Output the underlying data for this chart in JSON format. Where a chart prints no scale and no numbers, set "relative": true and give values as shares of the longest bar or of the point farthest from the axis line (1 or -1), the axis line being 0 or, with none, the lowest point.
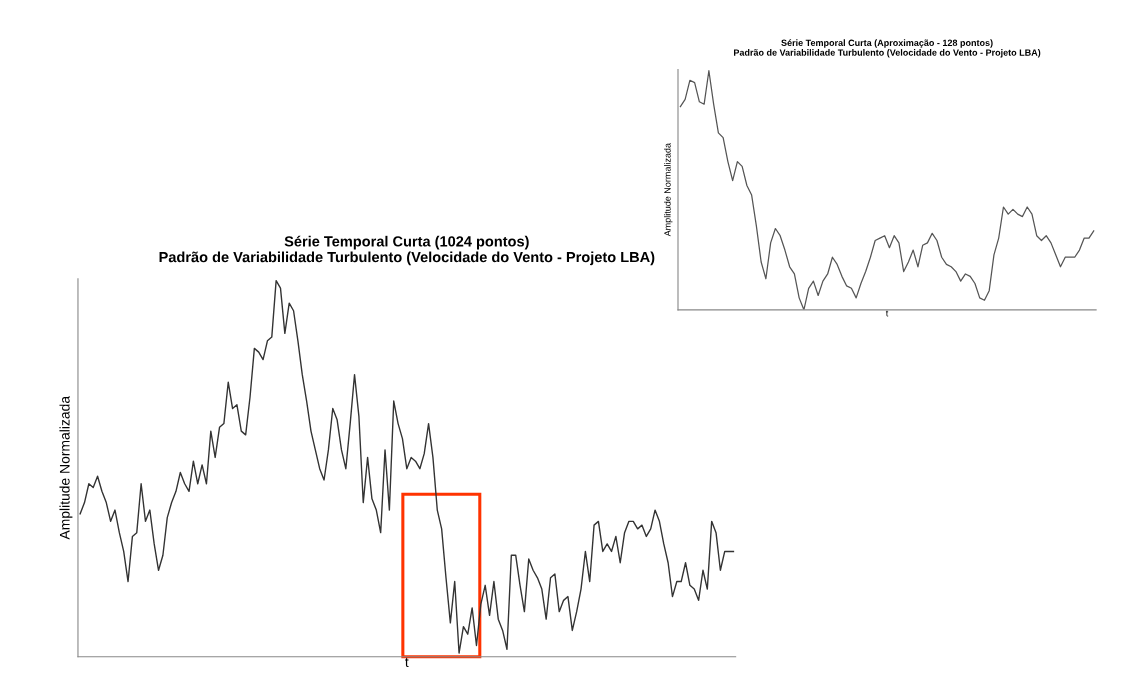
{
  "chart_data": [
    {
      "type": "line",
      "title": "Série Temporal Curta (1024 pontos)\nPadrão de Variabilidade Turbulento (Velocidade do Vento - Projeto LBA)",
      "xlabel": "t",
      "ylabel": "Amplitude Normalizada",
      "relative": true,
      "tick_labels": false,
      "grid": false,
      "categories": [
        null,
        null,
        null,
        null,
        null,
        null,
        null,
        null,
        null,
        null,
        null,
        null,
        null,
        null,
        null,
        null,
        null,
        null,
        null,
        null,
        null,
        null,
        null,
        null,
        null,
        null,
        null,
        null,
        null,
        null,
        null,
        null,
        null,
        null,
        null,
        null,
        null,
        null,
        null,
        null,
        null,
        null,
        null,
        null,
        null,
        null,
        null,
        null,
        null,
        null,
        null,
        null,
        null,
        null,
        null,
        null,
        null,
        null,
        null,
        null,
        null,
        null,
        null,
        null,
        null,
        null,
        null,
        null,
        null,
        null,
        null,
        null,
        null,
        null,
        null,
        null,
        null,
        null,
        null,
        null,
        null,
        null,
        null,
        null,
        null,
        null,
        null,
        null,
        null,
        null,
        null,
        null,
        null,
        null,
        null,
        null,
        null,
        null,
        null,
        null,
        null,
        null,
        null,
        null,
        null,
        null,
        null,
        null,
        null,
        null,
        null,
        null,
        null,
        null,
        null,
        null,
        null,
        null,
        null,
        null,
        null,
        null,
        null,
        null,
        null,
        null,
        null,
        null,
        null,
        null,
        null,
        null,
        null,
        null,
        null,
        null,
        null,
        null,
        null,
        null,
        null,
        null,
        null,
        null,
        null,
        null,
        null,
        null,
        null,
        null,
        null
      ],
      "series": [
        {
          "color": "#333333",
          "values": [
            0.38,
            0.41,
            0.46,
            0.45,
            0.48,
            0.44,
            0.41,
            0.36,
            0.39,
            0.33,
            0.28,
            0.2,
            0.32,
            0.33,
            0.46,
            0.36,
            0.39,
            0.3,
            0.23,
            0.27,
            0.37,
            0.41,
            0.44,
            0.49,
            0.46,
            0.44,
            0.52,
            0.46,
            0.51,
            0.46,
            0.6,
            0.53,
            0.61,
            0.62,
            0.73,
            0.66,
            0.67,
            0.6,
            0.59,
            0.69,
            0.82,
            0.81,
            0.79,
            0.84,
            0.85,
            1.0,
            0.98,
            0.86,
            0.94,
            0.92,
            0.84,
            0.75,
            0.68,
            0.6,
            0.55,
            0.5,
            0.47,
            0.55,
            0.66,
            0.63,
            0.55,
            0.5,
            0.62,
            0.75,
            0.64,
            0.41,
            0.53,
            0.42,
            0.39,
            0.33,
            0.55,
            0.39,
            0.68,
            0.62,
            0.58,
            0.5,
            0.53,
            0.52,
            0.5,
            0.54,
            0.62,
            0.53,
            0.39,
            0.34,
            0.21,
            0.09,
            0.2,
            0.01,
            0.08,
            0.06,
            0.13,
            0.03,
            0.14,
            0.19,
            0.11,
            0.2,
            0.1,
            0.07,
            0.02,
            0.27,
            0.27,
            0.19,
            0.12,
            0.26,
            0.23,
            0.21,
            0.18,
            0.1,
            0.21,
            0.22,
            0.12,
            0.15,
            0.16,
            0.07,
            0.12,
            0.18,
            0.28,
            0.2,
            0.35,
            0.36,
            0.28,
            0.3,
            0.28,
            0.32,
            0.25,
            0.33,
            0.36,
            0.36,
            0.34,
            0.35,
            0.32,
            0.34,
            0.39,
            0.36,
            0.3,
            0.25,
            0.16,
            0.2,
            0.2,
            0.25,
            0.19,
            0.18,
            0.15,
            0.23,
            0.18,
            0.36,
            0.33,
            0.23,
            0.28,
            0.28,
            0.28
          ]
        }
      ]
    },
    {
      "type": "line",
      "title": "Série Temporal Curta (Aproximação - 128 pontos)\nPadrão de Variabilidade Turbulento (Velocidade do Vento - Projeto LBA)",
      "xlabel": "t",
      "ylabel": "Amplitude Normalizada",
      "relative": true,
      "tick_labels": false,
      "grid": false,
      "categories": [
        null,
        null,
        null,
        null,
        null,
        null,
        null,
        null,
        null,
        null,
        null,
        null,
        null,
        null,
        null,
        null,
        null,
        null,
        null,
        null,
        null,
        null,
        null,
        null,
        null,
        null,
        null,
        null,
        null,
        null,
        null,
        null,
        null,
        null,
        null,
        null,
        null,
        null,
        null,
        null,
        null,
        null,
        null,
        null,
        null,
        null,
        null,
        null,
        null,
        null,
        null,
        null,
        null,
        null,
        null,
        null,
        null,
        null,
        null,
        null,
        null,
        null,
        null,
        null,
        null,
        null,
        null,
        null,
        null,
        null,
        null,
        null,
        null,
        null,
        null,
        null,
        null,
        null,
        null,
        null,
        null,
        null,
        null,
        null,
        null,
        null,
        null,
        null
      ],
      "series": [
        {
          "color": "#555555",
          "values": [
            0.85,
            0.88,
            0.96,
            0.95,
            0.87,
            0.86,
            1.0,
            0.86,
            0.74,
            0.72,
            0.62,
            0.54,
            0.62,
            0.6,
            0.52,
            0.48,
            0.35,
            0.2,
            0.13,
            0.28,
            0.34,
            0.31,
            0.25,
            0.18,
            0.15,
            0.05,
            0.0,
            0.09,
            0.12,
            0.06,
            0.12,
            0.15,
            0.22,
            0.19,
            0.14,
            0.1,
            0.09,
            0.05,
            0.11,
            0.16,
            0.22,
            0.29,
            0.3,
            0.31,
            0.26,
            0.31,
            0.28,
            0.16,
            0.2,
            0.25,
            0.18,
            0.27,
            0.28,
            0.32,
            0.29,
            0.22,
            0.19,
            0.18,
            0.16,
            0.12,
            0.15,
            0.14,
            0.11,
            0.05,
            0.04,
            0.08,
            0.23,
            0.3,
            0.43,
            0.4,
            0.42,
            0.4,
            0.39,
            0.43,
            0.4,
            0.31,
            0.29,
            0.31,
            0.28,
            0.23,
            0.18,
            0.22,
            0.22,
            0.22,
            0.25,
            0.3,
            0.3,
            0.33
          ]
        }
      ]
    }
  ]
}
